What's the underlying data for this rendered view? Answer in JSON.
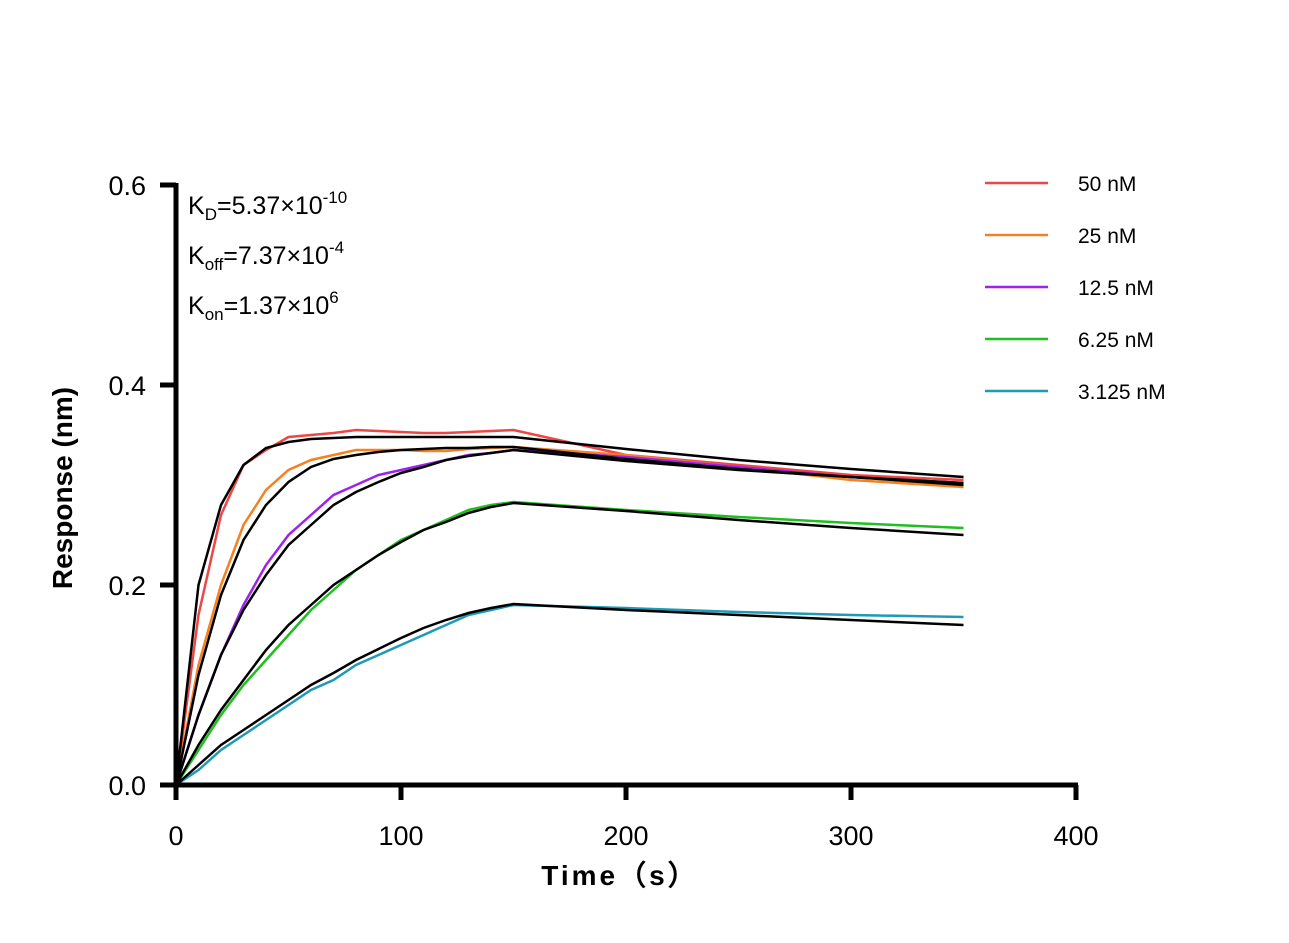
{
  "chart_data": {
    "type": "line",
    "xlabel": "Time（s）",
    "ylabel": "Response (nm)",
    "xlim": [
      0,
      400
    ],
    "ylim": [
      0,
      0.6
    ],
    "xticks": [
      "0",
      "100",
      "200",
      "300",
      "400"
    ],
    "yticks": [
      "0.0",
      "0.2",
      "0.4",
      "0.6"
    ],
    "grid": false,
    "legend_position": "top-right",
    "annotations": [
      {
        "main": "K",
        "sub": "D",
        "eq": "=5.37×10",
        "sup": "-10"
      },
      {
        "main": "K",
        "sub": "off",
        "eq": "=7.37×10",
        "sup": "-4"
      },
      {
        "main": "K",
        "sub": "on",
        "eq": "=1.37×10",
        "sup": "6"
      }
    ],
    "x": [
      0,
      10,
      20,
      30,
      40,
      50,
      60,
      70,
      80,
      90,
      100,
      110,
      120,
      130,
      140,
      150,
      200,
      250,
      300,
      350
    ],
    "series": [
      {
        "name": "50 nM",
        "color": "#f04545",
        "values": [
          0,
          0.17,
          0.27,
          0.32,
          0.335,
          0.348,
          0.35,
          0.352,
          0.355,
          0.354,
          0.353,
          0.352,
          0.352,
          0.353,
          0.354,
          0.355,
          0.33,
          0.32,
          0.31,
          0.305
        ]
      },
      {
        "name": "25 nM",
        "color": "#f58220",
        "values": [
          0,
          0.12,
          0.2,
          0.26,
          0.295,
          0.315,
          0.325,
          0.33,
          0.335,
          0.335,
          0.335,
          0.334,
          0.334,
          0.336,
          0.337,
          0.338,
          0.33,
          0.318,
          0.305,
          0.298
        ]
      },
      {
        "name": "12.5 nM",
        "color": "#a020f0",
        "values": [
          0,
          0.07,
          0.13,
          0.18,
          0.22,
          0.25,
          0.27,
          0.29,
          0.3,
          0.31,
          0.315,
          0.32,
          0.325,
          0.33,
          0.332,
          0.335,
          0.328,
          0.318,
          0.308,
          0.302
        ]
      },
      {
        "name": "6.25 nM",
        "color": "#1fbf1f",
        "values": [
          0,
          0.035,
          0.07,
          0.1,
          0.125,
          0.15,
          0.175,
          0.195,
          0.215,
          0.23,
          0.245,
          0.255,
          0.265,
          0.275,
          0.28,
          0.283,
          0.275,
          0.268,
          0.262,
          0.257
        ]
      },
      {
        "name": "3.125 nM",
        "color": "#1e9ab8",
        "values": [
          0,
          0.015,
          0.035,
          0.05,
          0.065,
          0.08,
          0.095,
          0.105,
          0.12,
          0.13,
          0.14,
          0.15,
          0.16,
          0.17,
          0.175,
          0.18,
          0.177,
          0.173,
          0.17,
          0.168
        ]
      }
    ],
    "fits": [
      {
        "color": "#000000",
        "values": [
          0,
          0.2,
          0.28,
          0.32,
          0.337,
          0.343,
          0.346,
          0.347,
          0.348,
          0.348,
          0.348,
          0.348,
          0.348,
          0.348,
          0.348,
          0.348,
          0.336,
          0.325,
          0.316,
          0.308
        ]
      },
      {
        "color": "#000000",
        "values": [
          0,
          0.11,
          0.19,
          0.245,
          0.28,
          0.303,
          0.318,
          0.326,
          0.33,
          0.333,
          0.335,
          0.336,
          0.337,
          0.337,
          0.338,
          0.338,
          0.326,
          0.316,
          0.308,
          0.302
        ]
      },
      {
        "color": "#000000",
        "values": [
          0,
          0.07,
          0.13,
          0.175,
          0.21,
          0.24,
          0.26,
          0.28,
          0.293,
          0.303,
          0.312,
          0.318,
          0.325,
          0.329,
          0.332,
          0.335,
          0.324,
          0.315,
          0.308,
          0.3
        ]
      },
      {
        "color": "#000000",
        "values": [
          0,
          0.04,
          0.075,
          0.105,
          0.135,
          0.16,
          0.18,
          0.2,
          0.215,
          0.23,
          0.243,
          0.255,
          0.263,
          0.272,
          0.278,
          0.282,
          0.274,
          0.265,
          0.257,
          0.25
        ]
      },
      {
        "color": "#000000",
        "values": [
          0,
          0.02,
          0.04,
          0.055,
          0.07,
          0.085,
          0.1,
          0.112,
          0.125,
          0.136,
          0.147,
          0.157,
          0.165,
          0.172,
          0.177,
          0.181,
          0.175,
          0.17,
          0.165,
          0.16
        ]
      }
    ]
  }
}
